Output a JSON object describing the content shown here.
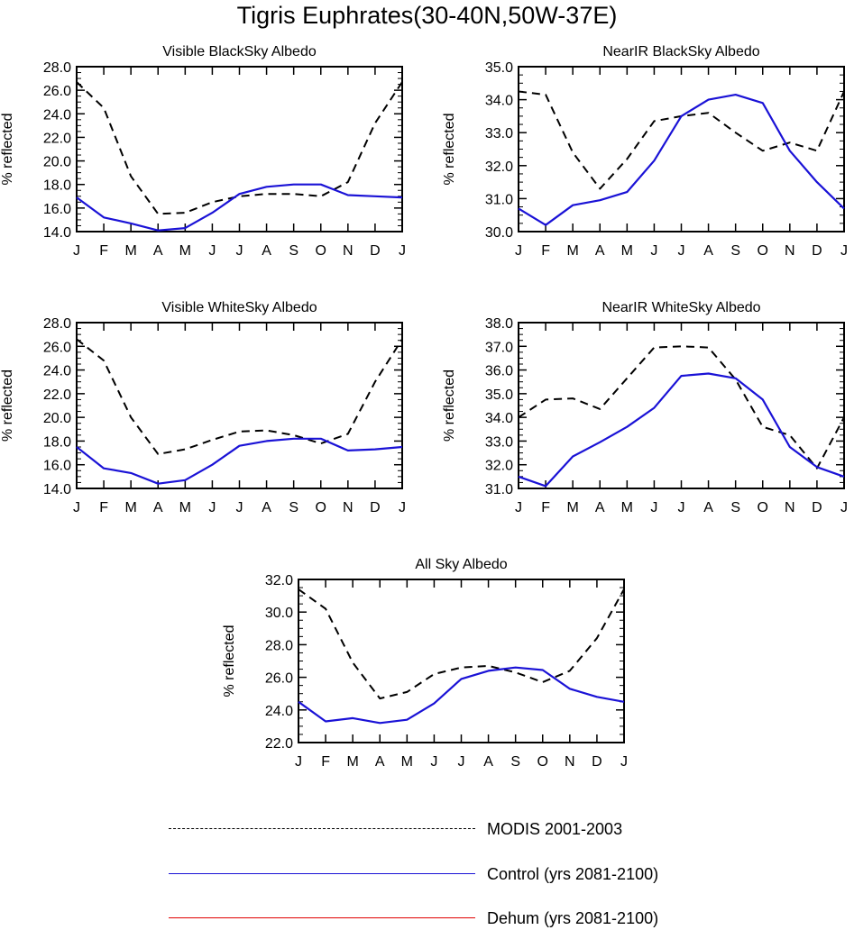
{
  "title": "Tigris Euphrates(30-40N,50W-37E)",
  "colors": {
    "modis": "#000000",
    "control": "#1a12d6",
    "dehum": "#e00000"
  },
  "legend": [
    {
      "label": "MODIS 2001-2003",
      "style": "dashed",
      "color_key": "modis"
    },
    {
      "label": "Control (yrs 2081-2100)",
      "style": "solid",
      "color_key": "control"
    },
    {
      "label": "Dehum (yrs 2081-2100)",
      "style": "solid",
      "color_key": "dehum"
    }
  ],
  "chart_data": [
    {
      "type": "line",
      "title": "Visible BlackSky Albedo",
      "ylabel": "% reflected",
      "xlabel": "",
      "categories": [
        "J",
        "F",
        "M",
        "A",
        "M",
        "J",
        "J",
        "A",
        "S",
        "O",
        "N",
        "D",
        "J"
      ],
      "ylim": [
        14.0,
        28.0
      ],
      "yticks": [
        14.0,
        16.0,
        18.0,
        20.0,
        22.0,
        24.0,
        26.0,
        28.0
      ],
      "series": [
        {
          "name": "MODIS 2001-2003",
          "values": [
            26.7,
            24.5,
            18.7,
            15.5,
            15.6,
            16.5,
            17.0,
            17.2,
            17.2,
            17.0,
            18.2,
            23.2,
            26.7
          ]
        },
        {
          "name": "Control (yrs 2081-2100)",
          "values": [
            16.9,
            15.2,
            14.7,
            14.1,
            14.3,
            15.6,
            17.2,
            17.8,
            18.0,
            18.0,
            17.1,
            17.0,
            16.9
          ]
        }
      ]
    },
    {
      "type": "line",
      "title": "NearIR BlackSky Albedo",
      "ylabel": "% reflected",
      "xlabel": "",
      "categories": [
        "J",
        "F",
        "M",
        "A",
        "M",
        "J",
        "J",
        "A",
        "S",
        "O",
        "N",
        "D",
        "J"
      ],
      "ylim": [
        30.0,
        35.0
      ],
      "yticks": [
        30.0,
        31.0,
        32.0,
        33.0,
        34.0,
        35.0
      ],
      "series": [
        {
          "name": "MODIS 2001-2003",
          "values": [
            34.25,
            34.15,
            32.4,
            31.3,
            32.2,
            33.35,
            33.5,
            33.6,
            33.0,
            32.45,
            32.7,
            32.45,
            34.25
          ]
        },
        {
          "name": "Control (yrs 2081-2100)",
          "values": [
            30.7,
            30.2,
            30.8,
            30.95,
            31.2,
            32.15,
            33.5,
            34.0,
            34.15,
            33.9,
            32.45,
            31.5,
            30.7
          ]
        }
      ]
    },
    {
      "type": "line",
      "title": "Visible WhiteSky Albedo",
      "ylabel": "% reflected",
      "xlabel": "",
      "categories": [
        "J",
        "F",
        "M",
        "A",
        "M",
        "J",
        "J",
        "A",
        "S",
        "O",
        "N",
        "D",
        "J"
      ],
      "ylim": [
        14.0,
        28.0
      ],
      "yticks": [
        14.0,
        16.0,
        18.0,
        20.0,
        22.0,
        24.0,
        26.0,
        28.0
      ],
      "series": [
        {
          "name": "MODIS 2001-2003",
          "values": [
            26.6,
            24.8,
            20.0,
            16.9,
            17.3,
            18.1,
            18.8,
            18.9,
            18.5,
            17.8,
            18.6,
            23.0,
            26.6
          ]
        },
        {
          "name": "Control (yrs 2081-2100)",
          "values": [
            17.5,
            15.7,
            15.3,
            14.4,
            14.7,
            16.0,
            17.6,
            18.0,
            18.2,
            18.2,
            17.2,
            17.3,
            17.5
          ]
        }
      ]
    },
    {
      "type": "line",
      "title": "NearIR WhiteSky Albedo",
      "ylabel": "% reflected",
      "xlabel": "",
      "categories": [
        "J",
        "F",
        "M",
        "A",
        "M",
        "J",
        "J",
        "A",
        "S",
        "O",
        "N",
        "D",
        "J"
      ],
      "ylim": [
        31.0,
        38.0
      ],
      "yticks": [
        31.0,
        32.0,
        33.0,
        34.0,
        35.0,
        36.0,
        37.0,
        38.0
      ],
      "series": [
        {
          "name": "MODIS 2001-2003",
          "values": [
            34.0,
            34.75,
            34.8,
            34.35,
            35.65,
            36.95,
            37.0,
            36.95,
            35.6,
            33.6,
            33.25,
            31.85,
            34.0
          ]
        },
        {
          "name": "Control (yrs 2081-2100)",
          "values": [
            31.5,
            31.1,
            32.35,
            32.95,
            33.6,
            34.4,
            35.75,
            35.85,
            35.65,
            34.75,
            32.75,
            31.9,
            31.5
          ]
        }
      ]
    },
    {
      "type": "line",
      "title": "All Sky Albedo",
      "ylabel": "% reflected",
      "xlabel": "",
      "categories": [
        "J",
        "F",
        "M",
        "A",
        "M",
        "J",
        "J",
        "A",
        "S",
        "O",
        "N",
        "D",
        "J"
      ],
      "ylim": [
        22.0,
        32.0
      ],
      "yticks": [
        22.0,
        24.0,
        26.0,
        28.0,
        30.0,
        32.0
      ],
      "series": [
        {
          "name": "MODIS 2001-2003",
          "values": [
            31.4,
            30.2,
            26.9,
            24.7,
            25.1,
            26.2,
            26.6,
            26.7,
            26.3,
            25.7,
            26.4,
            28.4,
            31.4
          ]
        },
        {
          "name": "Control (yrs 2081-2100)",
          "values": [
            24.5,
            23.3,
            23.5,
            23.2,
            23.4,
            24.4,
            25.9,
            26.4,
            26.6,
            26.45,
            25.3,
            24.8,
            24.5
          ]
        }
      ]
    }
  ]
}
